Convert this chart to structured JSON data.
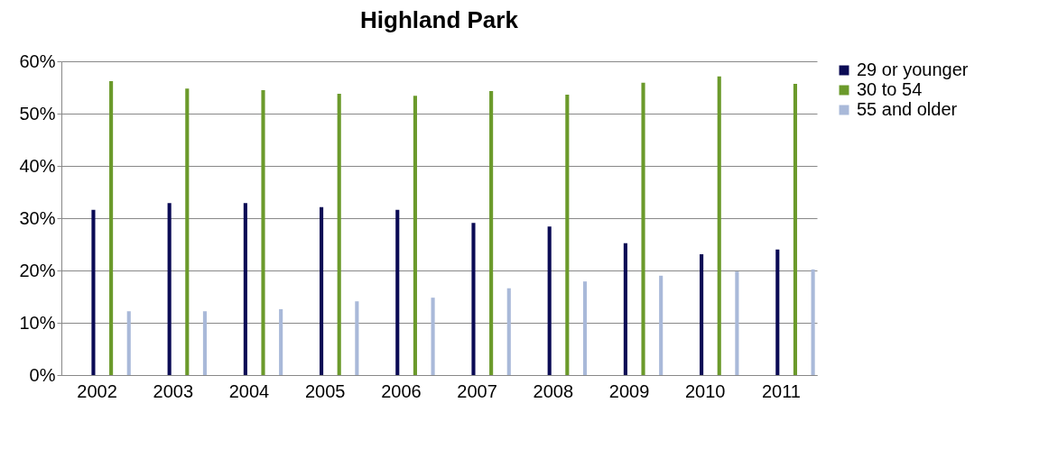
{
  "chart_data": {
    "type": "bar",
    "title": "Highland Park",
    "categories": [
      "2002",
      "2003",
      "2004",
      "2005",
      "2006",
      "2007",
      "2008",
      "2009",
      "2010",
      "2011"
    ],
    "series": [
      {
        "name": "29 or younger",
        "color": "#0b0b55",
        "values": [
          31.6,
          32.9,
          32.9,
          32.1,
          31.6,
          29.1,
          28.4,
          25.2,
          23.1,
          24.0
        ]
      },
      {
        "name": "30 to 54",
        "color": "#6b9a2b",
        "values": [
          56.2,
          54.8,
          54.5,
          53.8,
          53.4,
          54.3,
          53.6,
          55.9,
          57.1,
          55.7
        ]
      },
      {
        "name": "55 and older",
        "color": "#a9b9d9",
        "values": [
          12.2,
          12.2,
          12.6,
          14.1,
          14.8,
          16.6,
          17.9,
          19.0,
          19.8,
          20.2
        ]
      }
    ],
    "ylim": [
      0,
      60
    ],
    "yticks": [
      {
        "value": 0,
        "label": "0%"
      },
      {
        "value": 10,
        "label": "10%"
      },
      {
        "value": 20,
        "label": "20%"
      },
      {
        "value": 30,
        "label": "30%"
      },
      {
        "value": 40,
        "label": "40%"
      },
      {
        "value": 50,
        "label": "50%"
      },
      {
        "value": 60,
        "label": "60%"
      }
    ],
    "grid": "y",
    "legend": "right"
  }
}
